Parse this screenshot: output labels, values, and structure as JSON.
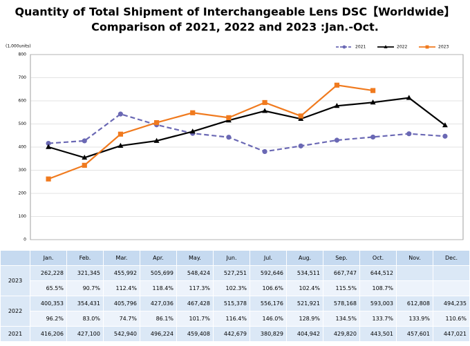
{
  "chart_data": {
    "type": "line",
    "title": "Quantity of Total Shipment of Interchangeable Lens DSC【Worldwide】",
    "subtitle": "Comparison of 2021, 2022 and 2023 :Jan.-Oct.",
    "y_axis_label": "(1,000units)",
    "categories": [
      "Jan.",
      "Feb.",
      "Mar.",
      "Apr.",
      "May.",
      "Jun.",
      "Jul.",
      "Aug.",
      "Sep.",
      "Oct.",
      "Nov.",
      "Dec."
    ],
    "ylim": [
      0,
      800
    ],
    "yticks": [
      0,
      100,
      200,
      300,
      400,
      500,
      600,
      700,
      800
    ],
    "grid": true,
    "legend": "top-right",
    "series": [
      {
        "name": "2021",
        "color": "#6a68b4",
        "line_style": "dashed",
        "marker": "circle",
        "values": [
          416.206,
          427.1,
          542.94,
          496.224,
          459.408,
          442.679,
          380.829,
          404.942,
          429.82,
          443.501,
          457.601,
          447.021
        ]
      },
      {
        "name": "2022",
        "color": "#000000",
        "line_style": "solid",
        "marker": "triangle",
        "values": [
          400.353,
          354.431,
          405.796,
          427.036,
          467.428,
          515.378,
          556.176,
          521.921,
          578.168,
          593.003,
          612.808,
          494.235
        ]
      },
      {
        "name": "2023",
        "color": "#f07a1e",
        "line_style": "solid",
        "marker": "square",
        "values": [
          262.228,
          321.345,
          455.992,
          505.699,
          548.424,
          527.251,
          592.646,
          534.511,
          667.747,
          644.512,
          null,
          null
        ]
      }
    ]
  },
  "table": {
    "rows": [
      {
        "year": "2023",
        "counts": [
          "262,228",
          "321,345",
          "455,992",
          "505,699",
          "548,424",
          "527,251",
          "592,646",
          "534,511",
          "667,747",
          "644,512",
          null,
          null
        ],
        "ratios": [
          "65.5%",
          "90.7%",
          "112.4%",
          "118.4%",
          "117.3%",
          "102.3%",
          "106.6%",
          "102.4%",
          "115.5%",
          "108.7%",
          null,
          null
        ]
      },
      {
        "year": "2022",
        "counts": [
          "400,353",
          "354,431",
          "405,796",
          "427,036",
          "467,428",
          "515,378",
          "556,176",
          "521,921",
          "578,168",
          "593,003",
          "612,808",
          "494,235"
        ],
        "ratios": [
          "96.2%",
          "83.0%",
          "74.7%",
          "86.1%",
          "101.7%",
          "116.4%",
          "146.0%",
          "128.9%",
          "134.5%",
          "133.7%",
          "133.9%",
          "110.6%"
        ]
      },
      {
        "year": "2021",
        "counts": [
          "416,206",
          "427,100",
          "542,940",
          "496,224",
          "459,408",
          "442,679",
          "380,829",
          "404,942",
          "429,820",
          "443,501",
          "457,601",
          "447,021"
        ]
      }
    ]
  }
}
